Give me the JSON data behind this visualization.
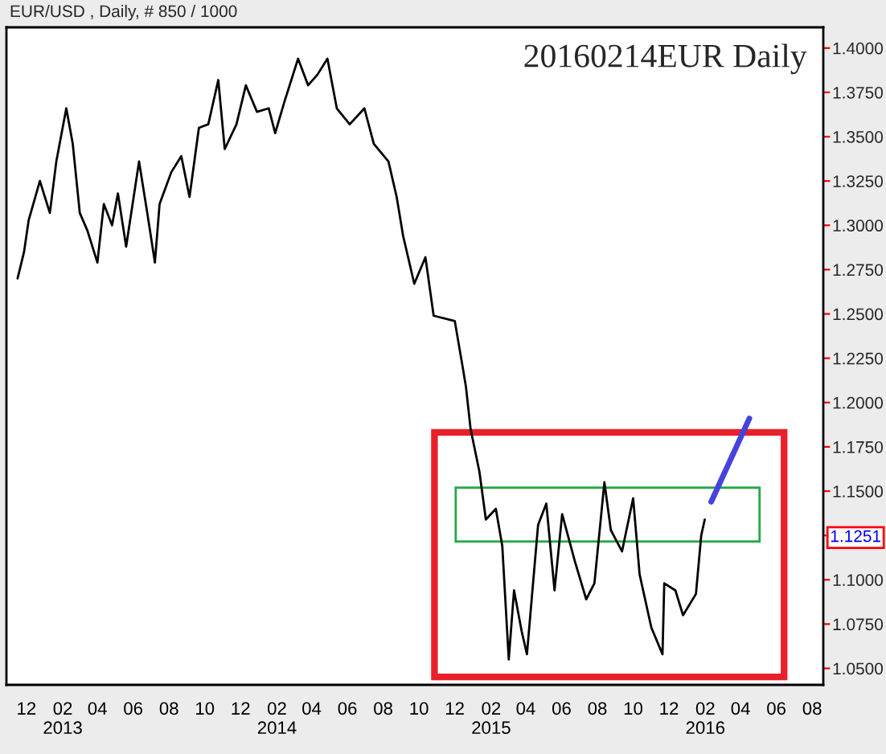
{
  "chart_data": {
    "type": "line",
    "title": "20160214EUR Daily",
    "subtitle": "EUR/USD , Daily, # 850 / 1000",
    "series": [
      {
        "color": "#000000",
        "x": [
          "2012-11-16",
          "2012-11-27",
          "2012-12-05",
          "2012-12-24",
          "2013-01-10",
          "2013-01-21",
          "2013-02-07",
          "2013-02-18",
          "2013-03-02",
          "2013-03-15",
          "2013-04-01",
          "2013-04-12",
          "2013-04-26",
          "2013-05-06",
          "2013-05-20",
          "2013-06-11",
          "2013-06-25",
          "2013-07-08",
          "2013-07-16",
          "2013-08-05",
          "2013-08-22",
          "2013-09-05",
          "2013-09-21",
          "2013-10-07",
          "2013-10-24",
          "2013-11-04",
          "2013-11-24",
          "2013-12-10",
          "2013-12-29",
          "2014-01-18",
          "2014-01-29",
          "2014-02-14",
          "2014-03-09",
          "2014-03-26",
          "2014-04-11",
          "2014-04-28",
          "2014-05-14",
          "2014-06-05",
          "2014-06-30",
          "2014-07-16",
          "2014-08-10",
          "2014-08-24",
          "2014-09-04",
          "2014-09-23",
          "2014-10-12",
          "2014-10-26",
          "2014-12-01",
          "2014-12-15",
          "2014-12-20",
          "2014-12-28",
          "2015-01-12",
          "2015-01-23",
          "2015-02-09",
          "2015-02-20",
          "2015-03-03",
          "2015-03-12",
          "2015-03-25",
          "2015-04-03",
          "2015-04-22",
          "2015-05-06",
          "2015-05-20",
          "2015-06-02",
          "2015-06-24",
          "2015-07-13",
          "2015-07-27",
          "2015-08-13",
          "2015-08-24",
          "2015-09-12",
          "2015-10-01",
          "2015-10-12",
          "2015-11-01",
          "2015-11-20",
          "2015-11-23",
          "2015-12-12",
          "2015-12-25",
          "2016-01-16",
          "2016-01-25",
          "2016-01-31"
        ],
        "values": [
          1.27,
          1.285,
          1.303,
          1.325,
          1.307,
          1.336,
          1.366,
          1.346,
          1.307,
          1.297,
          1.279,
          1.312,
          1.3,
          1.318,
          1.288,
          1.336,
          1.307,
          1.279,
          1.312,
          1.33,
          1.339,
          1.316,
          1.355,
          1.357,
          1.382,
          1.343,
          1.357,
          1.379,
          1.364,
          1.366,
          1.352,
          1.37,
          1.394,
          1.379,
          1.385,
          1.394,
          1.366,
          1.357,
          1.366,
          1.346,
          1.336,
          1.316,
          1.294,
          1.267,
          1.282,
          1.249,
          1.246,
          1.219,
          1.209,
          1.185,
          1.161,
          1.134,
          1.14,
          1.119,
          1.055,
          1.094,
          1.071,
          1.058,
          1.131,
          1.143,
          1.094,
          1.137,
          1.11,
          1.089,
          1.098,
          1.155,
          1.128,
          1.116,
          1.146,
          1.103,
          1.073,
          1.058,
          1.098,
          1.094,
          1.08,
          1.092,
          1.125,
          1.134
        ]
      },
      {
        "color": "#4444dd",
        "x": [
          "2016-02-11",
          "2016-04-16"
        ],
        "values": [
          1.144,
          1.191
        ]
      }
    ],
    "annotations": [
      "1.1251"
    ],
    "xlim": [
      "2012-10-28",
      "2016-08-20"
    ],
    "xticks": [
      {
        "value": "2012-12-01",
        "label": "12"
      },
      {
        "value": "2013-02-01",
        "label": "02\n2013"
      },
      {
        "value": "2013-04-01",
        "label": "04"
      },
      {
        "value": "2013-06-01",
        "label": "06"
      },
      {
        "value": "2013-08-01",
        "label": "08"
      },
      {
        "value": "2013-10-01",
        "label": "10"
      },
      {
        "value": "2013-12-01",
        "label": "12"
      },
      {
        "value": "2014-02-01",
        "label": "02\n2014"
      },
      {
        "value": "2014-04-01",
        "label": "04"
      },
      {
        "value": "2014-06-01",
        "label": "06"
      },
      {
        "value": "2014-08-01",
        "label": "08"
      },
      {
        "value": "2014-10-01",
        "label": "10"
      },
      {
        "value": "2014-12-01",
        "label": "12"
      },
      {
        "value": "2015-02-01",
        "label": "02\n2015"
      },
      {
        "value": "2015-04-01",
        "label": "04"
      },
      {
        "value": "2015-06-01",
        "label": "06"
      },
      {
        "value": "2015-08-01",
        "label": "08"
      },
      {
        "value": "2015-10-01",
        "label": "10"
      },
      {
        "value": "2015-12-01",
        "label": "12"
      },
      {
        "value": "2016-02-01",
        "label": "02\n2016"
      },
      {
        "value": "2016-04-01",
        "label": "04"
      },
      {
        "value": "2016-06-01",
        "label": "06"
      },
      {
        "value": "2016-08-01",
        "label": "08"
      }
    ],
    "ylim": [
      1.0407,
      1.4117
    ],
    "yticks": [
      {
        "value": 1.05,
        "label": "1.0500"
      },
      {
        "value": 1.075,
        "label": "1.0750"
      },
      {
        "value": 1.1,
        "label": "1.1000"
      },
      {
        "value": 1.125,
        "label": null
      },
      {
        "value": 1.15,
        "label": "1.1500"
      },
      {
        "value": 1.175,
        "label": "1.1750"
      },
      {
        "value": 1.2,
        "label": "1.2000"
      },
      {
        "value": 1.225,
        "label": "1.2250"
      },
      {
        "value": 1.25,
        "label": "1.2500"
      },
      {
        "value": 1.275,
        "label": "1.2750"
      },
      {
        "value": 1.3,
        "label": "1.3000"
      },
      {
        "value": 1.325,
        "label": "1.3250"
      },
      {
        "value": 1.35,
        "label": "1.3500"
      },
      {
        "value": 1.375,
        "label": "1.3750"
      },
      {
        "value": 1.4,
        "label": "1.4000"
      }
    ],
    "grid": false,
    "legend": false
  }
}
